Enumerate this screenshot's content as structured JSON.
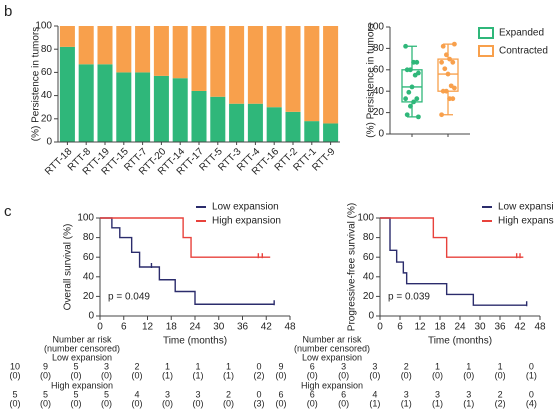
{
  "chart_data": [
    {
      "type": "stacked_bar",
      "panel": "b",
      "ylabel": "(%) Persistence in tumors",
      "categories": [
        "RTT-18",
        "RTT-8",
        "RTT-19",
        "RTT-15",
        "RTT-7",
        "RTT-20",
        "RTT-14",
        "RTT-17",
        "RTT-5",
        "RTT-3",
        "RTT-4",
        "RTT-16",
        "RTT-2",
        "RTT-1",
        "RTT-9"
      ],
      "series": [
        {
          "name": "Expanded",
          "color": "#2fb77a",
          "values": [
            82,
            67,
            67,
            60,
            60,
            57,
            55,
            44,
            39,
            33,
            33,
            30,
            26,
            18,
            16
          ]
        },
        {
          "name": "Contracted",
          "color": "#f8a04c",
          "values": [
            18,
            33,
            33,
            40,
            40,
            43,
            45,
            56,
            61,
            67,
            67,
            70,
            74,
            82,
            84
          ]
        }
      ],
      "ylim": [
        0,
        100
      ],
      "yticks": [
        0,
        20,
        40,
        60,
        80,
        100
      ]
    },
    {
      "type": "box",
      "ylabel": "(%) Persistence in tumors",
      "series": [
        {
          "name": "Expanded",
          "color": "#2fb77a",
          "points": [
            82,
            67,
            67,
            60,
            60,
            57,
            55,
            44,
            39,
            33,
            33,
            30,
            26,
            18,
            16
          ],
          "min": 16,
          "q1": 30,
          "median": 44,
          "q3": 60,
          "max": 82
        },
        {
          "name": "Contracted",
          "color": "#f8a04c",
          "points": [
            18,
            33,
            33,
            40,
            40,
            43,
            45,
            56,
            61,
            67,
            67,
            70,
            74,
            82,
            84
          ],
          "min": 18,
          "q1": 40,
          "median": 56,
          "q3": 70,
          "max": 84
        }
      ],
      "ylim": [
        0,
        100
      ],
      "yticks": [
        0,
        20,
        40,
        60,
        80,
        100
      ]
    },
    {
      "type": "km",
      "panel": "c",
      "ylabel": "Overall survival (%)",
      "xlabel": "Time (months)",
      "annotation": "p = 0.049",
      "series": [
        {
          "name": "Low expansion",
          "color": "#2b2c6c",
          "x": [
            0,
            3,
            5,
            8,
            10,
            15,
            19,
            24,
            44
          ],
          "values": [
            100,
            90,
            80,
            65,
            50,
            37,
            25,
            12,
            12
          ],
          "censor_x": [
            13,
            44
          ]
        },
        {
          "name": "High expansion",
          "color": "#e8423c",
          "x": [
            0,
            21,
            23,
            43
          ],
          "values": [
            100,
            80,
            60,
            60
          ],
          "censor_x": [
            40,
            41
          ]
        }
      ],
      "xlim": [
        0,
        48
      ],
      "xticks": [
        0,
        6,
        12,
        18,
        24,
        30,
        36,
        42,
        48
      ],
      "ylim": [
        0,
        100
      ],
      "yticks": [
        0,
        20,
        40,
        60,
        80,
        100
      ],
      "risk_table": {
        "title": [
          "Number ar risk",
          "(number censored)"
        ],
        "rows": [
          {
            "name": "Low expansion",
            "at_risk": [
              10,
              9,
              5,
              3,
              2,
              1,
              1,
              1,
              0
            ],
            "censored": [
              "(0)",
              "(0)",
              "(0)",
              "(0)",
              "(0)",
              "(1)",
              "(1)",
              "(1)",
              "(2)"
            ]
          },
          {
            "name": "High expansion",
            "at_risk": [
              5,
              5,
              5,
              5,
              4,
              3,
              3,
              2,
              0
            ],
            "censored": [
              "(0)",
              "(0)",
              "(0)",
              "(0)",
              "(0)",
              "(0)",
              "(0)",
              "(0)",
              "(3)"
            ]
          }
        ]
      }
    },
    {
      "type": "km",
      "ylabel": "Progressive-free survival (%)",
      "xlabel": "Time (months)",
      "annotation": "p = 0.039",
      "series": [
        {
          "name": "Low expansion",
          "color": "#2b2c6c",
          "x": [
            0,
            3,
            5,
            7,
            8,
            12,
            20,
            28,
            44
          ],
          "values": [
            100,
            67,
            55,
            44,
            33,
            33,
            22,
            11,
            11
          ],
          "censor_x": [
            44
          ]
        },
        {
          "name": "High expansion",
          "color": "#e8423c",
          "x": [
            0,
            16,
            20,
            43
          ],
          "values": [
            100,
            80,
            60,
            60
          ],
          "censor_x": [
            41,
            42
          ]
        }
      ],
      "xlim": [
        0,
        48
      ],
      "xticks": [
        0,
        6,
        12,
        18,
        24,
        30,
        36,
        42,
        48
      ],
      "ylim": [
        0,
        100
      ],
      "yticks": [
        0,
        20,
        40,
        60,
        80,
        100
      ],
      "risk_table": {
        "title": [
          "Number ar risk",
          "(number censored)"
        ],
        "rows": [
          {
            "name": "Low expansion",
            "at_risk": [
              9,
              6,
              3,
              3,
              2,
              1,
              1,
              1,
              0
            ],
            "censored": [
              "(0)",
              "(0)",
              "(0)",
              "(0)",
              "(0)",
              "(0)",
              "(0)",
              "(0)",
              "(1)"
            ]
          },
          {
            "name": "High expansion",
            "at_risk": [
              6,
              6,
              6,
              4,
              3,
              3,
              3,
              2,
              0
            ],
            "censored": [
              "(0)",
              "(0)",
              "(0)",
              "(1)",
              "(1)",
              "(1)",
              "(1)",
              "(2)",
              "(4)"
            ]
          }
        ]
      }
    }
  ]
}
